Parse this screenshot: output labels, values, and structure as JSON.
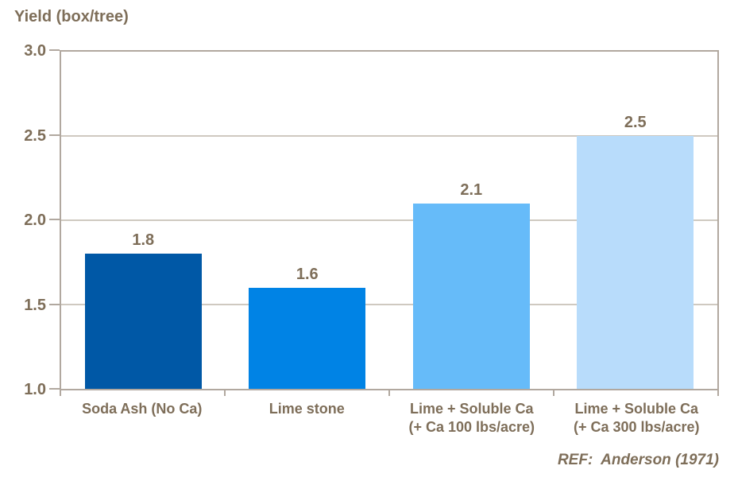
{
  "chart": {
    "title": "Yield (box/tree)",
    "reference": "REF:  Anderson (1971)"
  },
  "chart_data": {
    "type": "bar",
    "title": "Yield (box/tree)",
    "categories": [
      "Soda Ash (No Ca)",
      "Lime stone",
      "Lime + Soluble Ca\n(+ Ca 100 lbs/acre)",
      "Lime + Soluble Ca\n(+ Ca 300 lbs/acre)"
    ],
    "values": [
      1.8,
      1.6,
      2.1,
      2.5
    ],
    "value_labels": [
      "1.8",
      "1.6",
      "2.1",
      "2.5"
    ],
    "bar_colors": [
      "#0058A6",
      "#0083E5",
      "#66BBF9",
      "#B8DCFB"
    ],
    "xlabel": "",
    "ylabel": "Yield (box/tree)",
    "ylim": [
      1.0,
      3.0
    ],
    "ytick_step": 0.5,
    "ytick_labels": [
      "3.0",
      "2.5",
      "2.0",
      "1.5",
      "1.0"
    ],
    "grid": true,
    "legend": false,
    "annotation": "REF:  Anderson (1971)",
    "colors": {
      "text": "#7E6E59",
      "plot_border": "#B1A89F",
      "gridline": "#CFC9C0",
      "background": "#FFFFFF"
    }
  }
}
